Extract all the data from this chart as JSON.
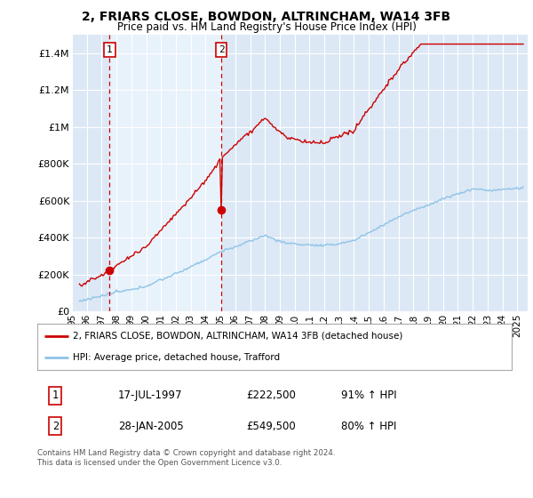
{
  "title": "2, FRIARS CLOSE, BOWDON, ALTRINCHAM, WA14 3FB",
  "subtitle": "Price paid vs. HM Land Registry's House Price Index (HPI)",
  "ylabel_ticks": [
    "£0",
    "£200K",
    "£400K",
    "£600K",
    "£800K",
    "£1M",
    "£1.2M",
    "£1.4M"
  ],
  "ytick_values": [
    0,
    200000,
    400000,
    600000,
    800000,
    1000000,
    1200000,
    1400000
  ],
  "ylim": [
    0,
    1500000
  ],
  "xlim_start": 1995.3,
  "xlim_end": 2025.7,
  "sale1_x": 1997.54,
  "sale1_y": 222500,
  "sale2_x": 2005.07,
  "sale2_y": 549500,
  "sale1_label": "1",
  "sale2_label": "2",
  "vline1_x": 1997.54,
  "vline2_x": 2005.07,
  "hpi_color": "#8ec4e8",
  "price_color": "#cc0000",
  "vline_color": "#cc0000",
  "background_plot": "#dce8f5",
  "background_between": "#e8f2fb",
  "background_fig": "#ffffff",
  "grid_color": "#c8d8e8",
  "legend_line1": "2, FRIARS CLOSE, BOWDON, ALTRINCHAM, WA14 3FB (detached house)",
  "legend_line2": "HPI: Average price, detached house, Trafford",
  "table_row1_num": "1",
  "table_row1_date": "17-JUL-1997",
  "table_row1_price": "£222,500",
  "table_row1_hpi": "91% ↑ HPI",
  "table_row2_num": "2",
  "table_row2_date": "28-JAN-2005",
  "table_row2_price": "£549,500",
  "table_row2_hpi": "80% ↑ HPI",
  "footer": "Contains HM Land Registry data © Crown copyright and database right 2024.\nThis data is licensed under the Open Government Licence v3.0.",
  "xtick_years": [
    1995,
    1996,
    1997,
    1998,
    1999,
    2000,
    2001,
    2002,
    2003,
    2004,
    2005,
    2006,
    2007,
    2008,
    2009,
    2010,
    2011,
    2012,
    2013,
    2014,
    2015,
    2016,
    2017,
    2018,
    2019,
    2020,
    2021,
    2022,
    2023,
    2024,
    2025
  ]
}
